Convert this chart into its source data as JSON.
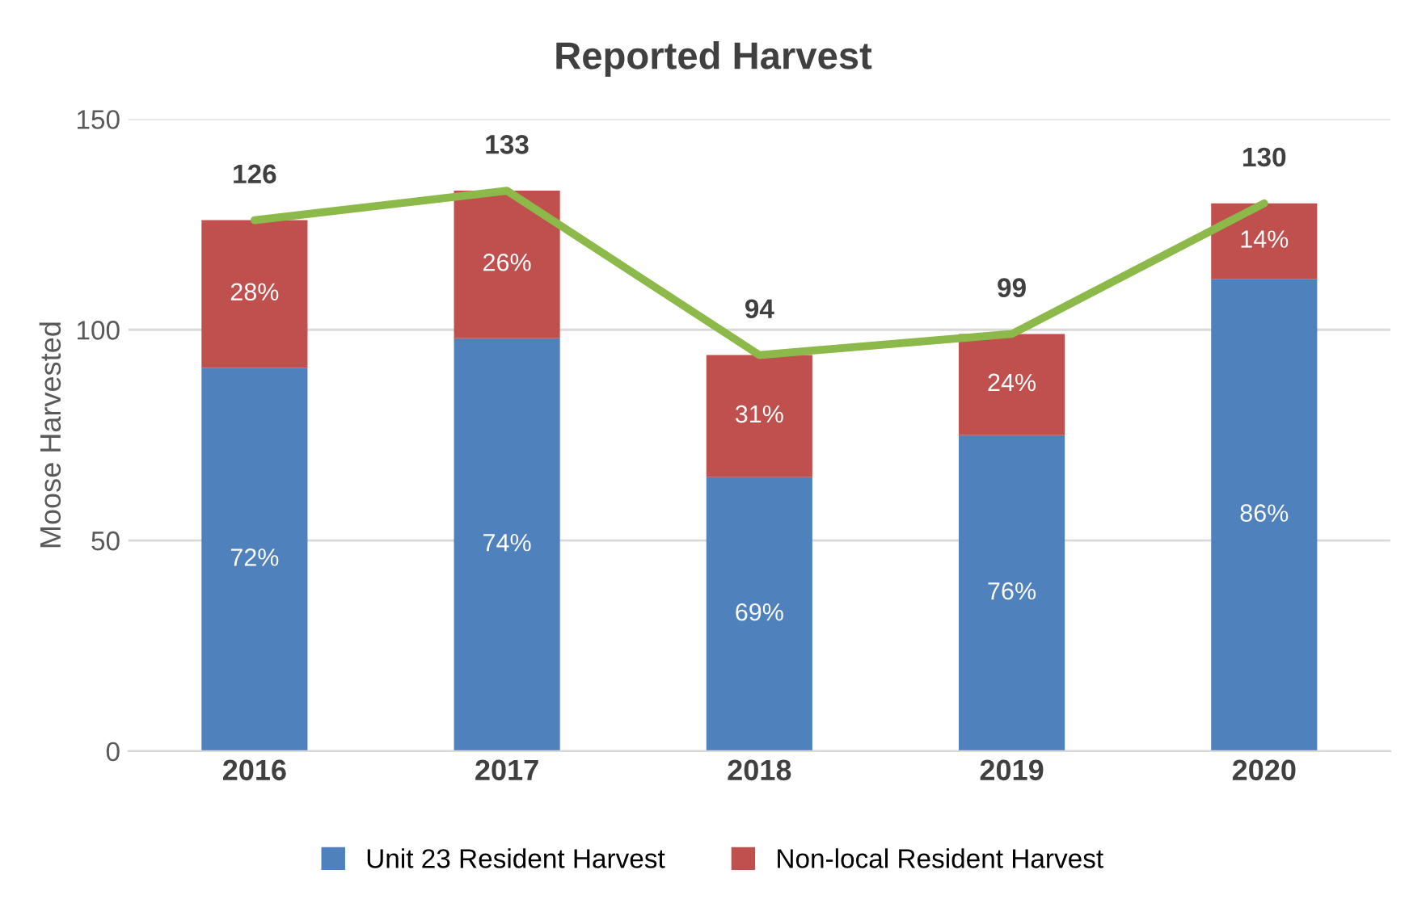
{
  "chart_data": {
    "type": "bar",
    "title": "Reported Harvest",
    "ylabel": "Moose Harvested",
    "categories": [
      "2016",
      "2017",
      "2018",
      "2019",
      "2020"
    ],
    "stacked": true,
    "series": [
      {
        "name": "Unit 23 Resident Harvest",
        "color": "#4f81bd",
        "values": [
          91,
          98,
          65,
          75,
          112
        ]
      },
      {
        "name": "Non-local Resident Harvest",
        "color": "#c0504d",
        "values": [
          35,
          35,
          29,
          24,
          18
        ]
      },
      {
        "type": "line",
        "color": "#8db84a",
        "values": [
          126,
          133,
          94,
          99,
          130
        ],
        "value_labels": [
          "126",
          "133",
          "94",
          "99",
          "130"
        ]
      }
    ],
    "annotations": [
      "72%",
      "74%",
      "69%",
      "76%",
      "86%",
      "28%",
      "26%",
      "31%",
      "24%",
      "14%"
    ],
    "ylim": [
      0,
      150
    ],
    "yticks": [
      0,
      50,
      100,
      150
    ],
    "grid": "y",
    "legend": "bottom"
  }
}
